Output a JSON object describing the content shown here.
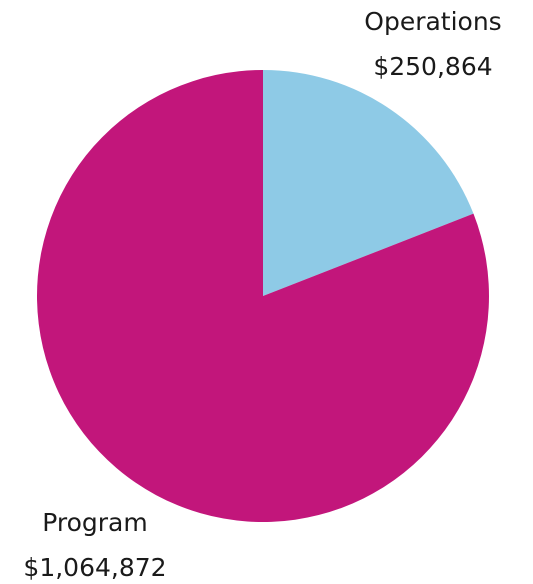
{
  "chart_data": {
    "type": "pie",
    "slices": [
      {
        "label": "Operations",
        "value": 250864,
        "value_label": "$250,864",
        "color": "#8ecae6"
      },
      {
        "label": "Program",
        "value": 1064872,
        "value_label": "$1,064,872",
        "color": "#c2167b"
      }
    ],
    "start_angle_deg": 0,
    "direction": "clockwise",
    "legend": "none",
    "title": ""
  }
}
